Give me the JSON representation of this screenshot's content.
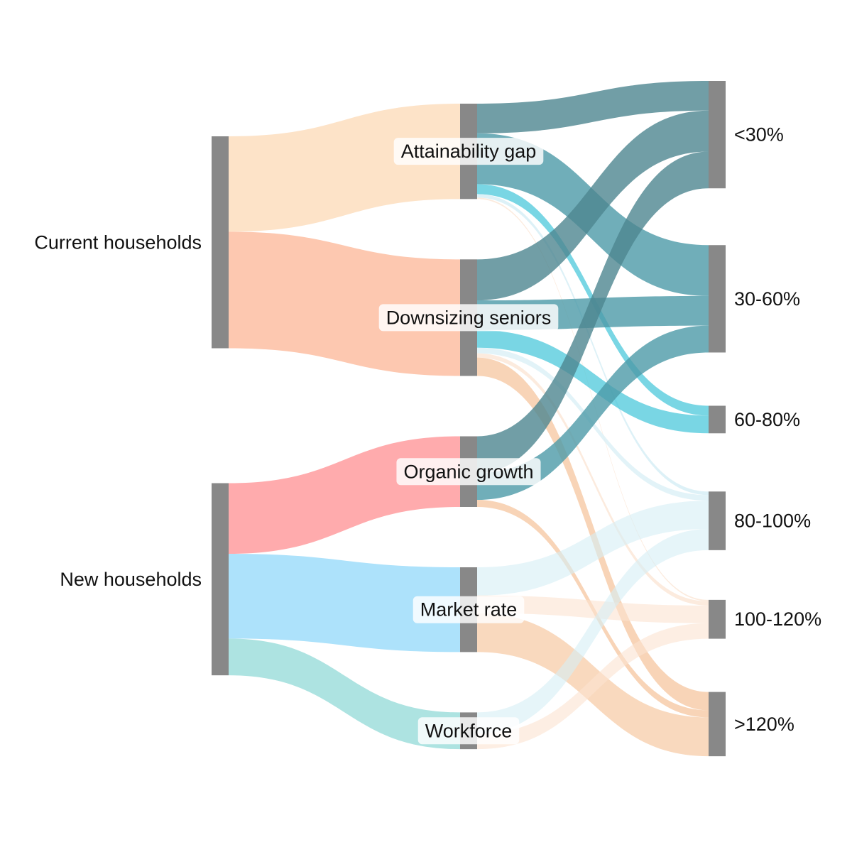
{
  "chart_data": {
    "type": "sankey",
    "nodes": [
      {
        "id": "current",
        "label": "Current households",
        "stage": 0
      },
      {
        "id": "new",
        "label": "New households",
        "stage": 0
      },
      {
        "id": "attain",
        "label": "Attainability gap",
        "stage": 1
      },
      {
        "id": "downsize",
        "label": "Downsizing seniors",
        "stage": 1
      },
      {
        "id": "organic",
        "label": "Organic growth",
        "stage": 1
      },
      {
        "id": "market",
        "label": "Market rate",
        "stage": 1
      },
      {
        "id": "workforce",
        "label": "Workforce",
        "stage": 1
      },
      {
        "id": "lt30",
        "label": "<30%",
        "stage": 2
      },
      {
        "id": "b3060",
        "label": "30-60%",
        "stage": 2
      },
      {
        "id": "b6080",
        "label": "60-80%",
        "stage": 2
      },
      {
        "id": "b80100",
        "label": "80-100%",
        "stage": 2
      },
      {
        "id": "b100120",
        "label": "100-120%",
        "stage": 2
      },
      {
        "id": "gt120",
        "label": ">120%",
        "stage": 2
      }
    ],
    "links": [
      {
        "source": "current",
        "target": "attain",
        "value": 135,
        "color": "#fde3c8",
        "opacity": 1
      },
      {
        "source": "current",
        "target": "downsize",
        "value": 165,
        "color": "#fdc8b0",
        "opacity": 1
      },
      {
        "source": "new",
        "target": "organic",
        "value": 100,
        "color": "#ffabad",
        "opacity": 1
      },
      {
        "source": "new",
        "target": "market",
        "value": 120,
        "color": "#ade2fb",
        "opacity": 1
      },
      {
        "source": "new",
        "target": "workforce",
        "value": 52,
        "color": "#ade3e1",
        "opacity": 1
      },
      {
        "source": "attain",
        "target": "lt30",
        "value": 42,
        "color": "#4d8690",
        "opacity": 0.8
      },
      {
        "source": "attain",
        "target": "b3060",
        "value": 72,
        "color": "#4c9aa7",
        "opacity": 0.8
      },
      {
        "source": "attain",
        "target": "b6080",
        "value": 14,
        "color": "#40c4d8",
        "opacity": 0.7
      },
      {
        "source": "attain",
        "target": "b80100",
        "value": 5,
        "color": "#d5eef5",
        "opacity": 0.8
      },
      {
        "source": "attain",
        "target": "b100120",
        "value": 2,
        "color": "#fbe3d0",
        "opacity": 0.7
      },
      {
        "source": "downsize",
        "target": "lt30",
        "value": 58,
        "color": "#4d8690",
        "opacity": 0.8
      },
      {
        "source": "downsize",
        "target": "b3060",
        "value": 42,
        "color": "#4c9aa7",
        "opacity": 0.8
      },
      {
        "source": "downsize",
        "target": "b6080",
        "value": 25,
        "color": "#40c4d8",
        "opacity": 0.7
      },
      {
        "source": "downsize",
        "target": "b80100",
        "value": 8,
        "color": "#d5eef5",
        "opacity": 0.7
      },
      {
        "source": "downsize",
        "target": "b100120",
        "value": 6,
        "color": "#fbe3d0",
        "opacity": 0.7
      },
      {
        "source": "downsize",
        "target": "gt120",
        "value": 26,
        "color": "#f5c298",
        "opacity": 0.7
      },
      {
        "source": "organic",
        "target": "lt30",
        "value": 52,
        "color": "#4d8690",
        "opacity": 0.8
      },
      {
        "source": "organic",
        "target": "b3060",
        "value": 38,
        "color": "#4c9aa7",
        "opacity": 0.8
      },
      {
        "source": "organic",
        "target": "gt120",
        "value": 10,
        "color": "#f5c298",
        "opacity": 0.7
      },
      {
        "source": "market",
        "target": "b80100",
        "value": 40,
        "color": "#d5eef5",
        "opacity": 0.6
      },
      {
        "source": "market",
        "target": "b100120",
        "value": 25,
        "color": "#fbe3d0",
        "opacity": 0.6
      },
      {
        "source": "market",
        "target": "gt120",
        "value": 55,
        "color": "#f7c9a2",
        "opacity": 0.7
      },
      {
        "source": "workforce",
        "target": "b80100",
        "value": 30,
        "color": "#d5eef5",
        "opacity": 0.6
      },
      {
        "source": "workforce",
        "target": "b100120",
        "value": 22,
        "color": "#fbe3d0",
        "opacity": 0.6
      }
    ],
    "node_color": "#888888"
  }
}
